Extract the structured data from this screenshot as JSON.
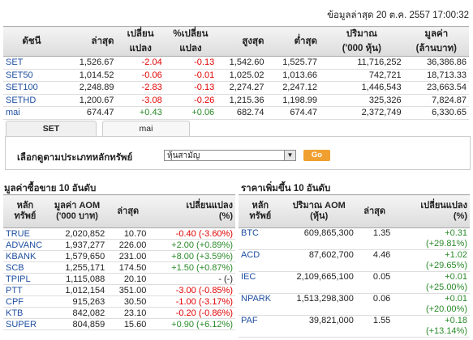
{
  "timestamp": "ข้อมูลล่าสุด 20 ต.ค. 2557 17:00:32",
  "index_table": {
    "headers": {
      "name": "ดัชนี",
      "last": "ล่าสุด",
      "change_l1": "เปลี่ยน",
      "change_l2": "แปลง",
      "pct_l1": "%เปลี่ยน",
      "pct_l2": "แปลง",
      "high": "สูงสุด",
      "low": "ต่ำสุด",
      "volume_l1": "ปริมาณ",
      "volume_l2": "('000 หุ้น)",
      "value_l1": "มูลค่า",
      "value_l2": "(ล้านบาท)"
    },
    "rows": [
      {
        "name": "SET",
        "last": "1,526.67",
        "change": "-2.04",
        "pct": "-0.13",
        "high": "1,542.60",
        "low": "1,525.77",
        "volume": "11,716,252",
        "value": "36,386.86",
        "dir": "neg"
      },
      {
        "name": "SET50",
        "last": "1,014.52",
        "change": "-0.06",
        "pct": "-0.01",
        "high": "1,025.02",
        "low": "1,013.66",
        "volume": "742,721",
        "value": "18,713.33",
        "dir": "neg"
      },
      {
        "name": "SET100",
        "last": "2,248.89",
        "change": "-2.83",
        "pct": "-0.13",
        "high": "2,274.27",
        "low": "2,247.12",
        "volume": "1,446,543",
        "value": "23,663.54",
        "dir": "neg"
      },
      {
        "name": "SETHD",
        "last": "1,200.67",
        "change": "-3.08",
        "pct": "-0.26",
        "high": "1,215.36",
        "low": "1,198.99",
        "volume": "325,326",
        "value": "7,824.87",
        "dir": "neg"
      },
      {
        "name": "mai",
        "last": "674.47",
        "change": "+0.43",
        "pct": "+0.06",
        "high": "682.74",
        "low": "674.47",
        "volume": "2,372,749",
        "value": "6,330.65",
        "dir": "pos"
      }
    ]
  },
  "tabs": {
    "set": "SET",
    "mai": "mai"
  },
  "filter": {
    "label": "เลือกดูตามประเภทหลักทรัพย์",
    "selected": "หุ้นสามัญ",
    "go": "Go"
  },
  "left_section": {
    "title": "มูลค่าซื้อขาย 10 อันดับ",
    "headers": {
      "sym_l1": "หลัก",
      "sym_l2": "ทรัพย์",
      "aom_l1": "มูลค่า AOM",
      "aom_l2": "('000 บาท)",
      "last": "ล่าสุด",
      "chg_l1": "เปลี่ยนแปลง",
      "chg_l2": "(%)"
    },
    "rows": [
      {
        "sym": "TRUE",
        "aom": "2,020,852",
        "last": "10.70",
        "chg": "-0.40 (-3.60%)",
        "dir": "neg"
      },
      {
        "sym": "ADVANC",
        "aom": "1,937,277",
        "last": "226.00",
        "chg": "+2.00 (+0.89%)",
        "dir": "pos"
      },
      {
        "sym": "KBANK",
        "aom": "1,579,650",
        "last": "231.00",
        "chg": "+8.00 (+3.59%)",
        "dir": "pos"
      },
      {
        "sym": "SCB",
        "aom": "1,255,171",
        "last": "174.50",
        "chg": "+1.50 (+0.87%)",
        "dir": "pos"
      },
      {
        "sym": "TPIPL",
        "aom": "1,115,088",
        "last": "20.10",
        "chg": "- (-)",
        "dir": "neu"
      },
      {
        "sym": "PTT",
        "aom": "1,012,154",
        "last": "351.00",
        "chg": "-3.00 (-0.85%)",
        "dir": "neg"
      },
      {
        "sym": "CPF",
        "aom": "915,263",
        "last": "30.50",
        "chg": "-1.00 (-3.17%)",
        "dir": "neg"
      },
      {
        "sym": "KTB",
        "aom": "842,082",
        "last": "23.10",
        "chg": "-0.20 (-0.86%)",
        "dir": "neg"
      },
      {
        "sym": "SUPER",
        "aom": "804,859",
        "last": "15.60",
        "chg": "+0.90 (+6.12%)",
        "dir": "pos"
      }
    ]
  },
  "right_section": {
    "title": "ราคาเพิ่มขึ้น 10 อันดับ",
    "headers": {
      "sym_l1": "หลัก",
      "sym_l2": "ทรัพย์",
      "vol_l1": "ปริมาณ AOM",
      "vol_l2": "(หุ้น)",
      "last": "ล่าสุด",
      "chg_l1": "เปลี่ยนแปลง",
      "chg_l2": "(%)"
    },
    "rows": [
      {
        "sym": "BTC",
        "vol": "609,865,300",
        "last": "1.35",
        "chg": "+0.31",
        "pct": "(+29.81%)"
      },
      {
        "sym": "ACD",
        "vol": "87,602,700",
        "last": "4.46",
        "chg": "+1.02",
        "pct": "(+29.65%)"
      },
      {
        "sym": "IEC",
        "vol": "2,109,665,100",
        "last": "0.05",
        "chg": "+0.01",
        "pct": "(+25.00%)"
      },
      {
        "sym": "NPARK",
        "vol": "1,513,298,300",
        "last": "0.06",
        "chg": "+0.01",
        "pct": "(+20.00%)"
      },
      {
        "sym": "PAF",
        "vol": "39,821,000",
        "last": "1.55",
        "chg": "+0.18",
        "pct": "(+13.14%)"
      }
    ]
  },
  "colors": {
    "negative": "#e00000",
    "positive": "#2a8a2a",
    "link": "#1f4fa0",
    "go_button": "#f0a030"
  }
}
